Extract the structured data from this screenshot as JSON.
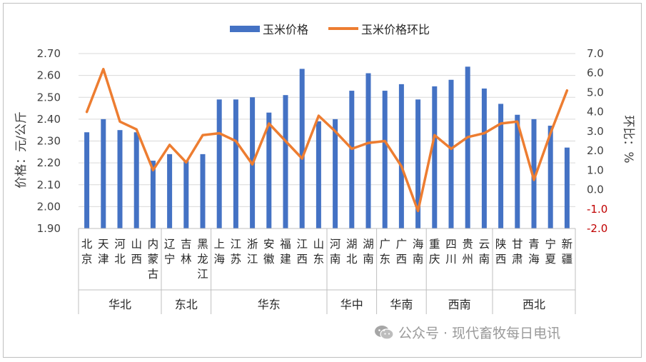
{
  "chart_data": {
    "type": "bar+line",
    "legend": [
      "玉米价格",
      "玉米价格环比"
    ],
    "legend_position": "top",
    "ylabel_left": "价格：元/公斤",
    "ylabel_right": "环比：%",
    "ylim_left": [
      1.9,
      2.7
    ],
    "yticks_left": [
      "2.70",
      "2.60",
      "2.50",
      "2.40",
      "2.30",
      "2.20",
      "2.10",
      "2.00",
      "1.90"
    ],
    "ylim_right": [
      -2.0,
      7.0
    ],
    "yticks_right": [
      "7.0",
      "6.0",
      "5.0",
      "4.0",
      "3.0",
      "2.0",
      "1.0",
      "0.0",
      "-1.0",
      "-2.0"
    ],
    "categories": [
      "北京",
      "天津",
      "河北",
      "山西",
      "内蒙古",
      "辽宁",
      "吉林",
      "黑龙江",
      "上海",
      "江苏",
      "浙江",
      "安徽",
      "福建",
      "江西",
      "山东",
      "河南",
      "湖北",
      "湖南",
      "广东",
      "广西",
      "海南",
      "重庆",
      "四川",
      "贵州",
      "云南",
      "陕西",
      "甘肃",
      "青海",
      "宁夏",
      "新疆"
    ],
    "groups": [
      {
        "name": "华北",
        "count": 5
      },
      {
        "name": "东北",
        "count": 3
      },
      {
        "name": "华东",
        "count": 7
      },
      {
        "name": "华中",
        "count": 3
      },
      {
        "name": "华南",
        "count": 3
      },
      {
        "name": "西南",
        "count": 4
      },
      {
        "name": "西北",
        "count": 5
      }
    ],
    "series": [
      {
        "name": "玉米价格",
        "type": "bar",
        "axis": "left",
        "color": "#4472c4",
        "values": [
          2.34,
          2.4,
          2.35,
          2.34,
          2.21,
          2.24,
          2.21,
          2.24,
          2.49,
          2.49,
          2.5,
          2.43,
          2.51,
          2.63,
          2.39,
          2.4,
          2.53,
          2.61,
          2.53,
          2.56,
          2.49,
          2.55,
          2.58,
          2.64,
          2.54,
          2.47,
          2.42,
          2.4,
          2.37,
          2.27
        ]
      },
      {
        "name": "玉米价格环比",
        "type": "line",
        "axis": "right",
        "color": "#ed7d31",
        "values": [
          4.0,
          6.2,
          3.5,
          3.1,
          1.0,
          2.3,
          1.4,
          2.8,
          2.9,
          2.5,
          1.3,
          3.4,
          2.5,
          1.6,
          3.8,
          3.0,
          2.1,
          2.4,
          2.5,
          1.2,
          -1.1,
          2.8,
          2.1,
          2.7,
          2.9,
          3.4,
          3.5,
          0.5,
          2.9,
          5.1
        ]
      }
    ]
  },
  "watermark": {
    "icon": "wechat-icon",
    "text": "公众号 · 现代畜牧每日电讯"
  }
}
